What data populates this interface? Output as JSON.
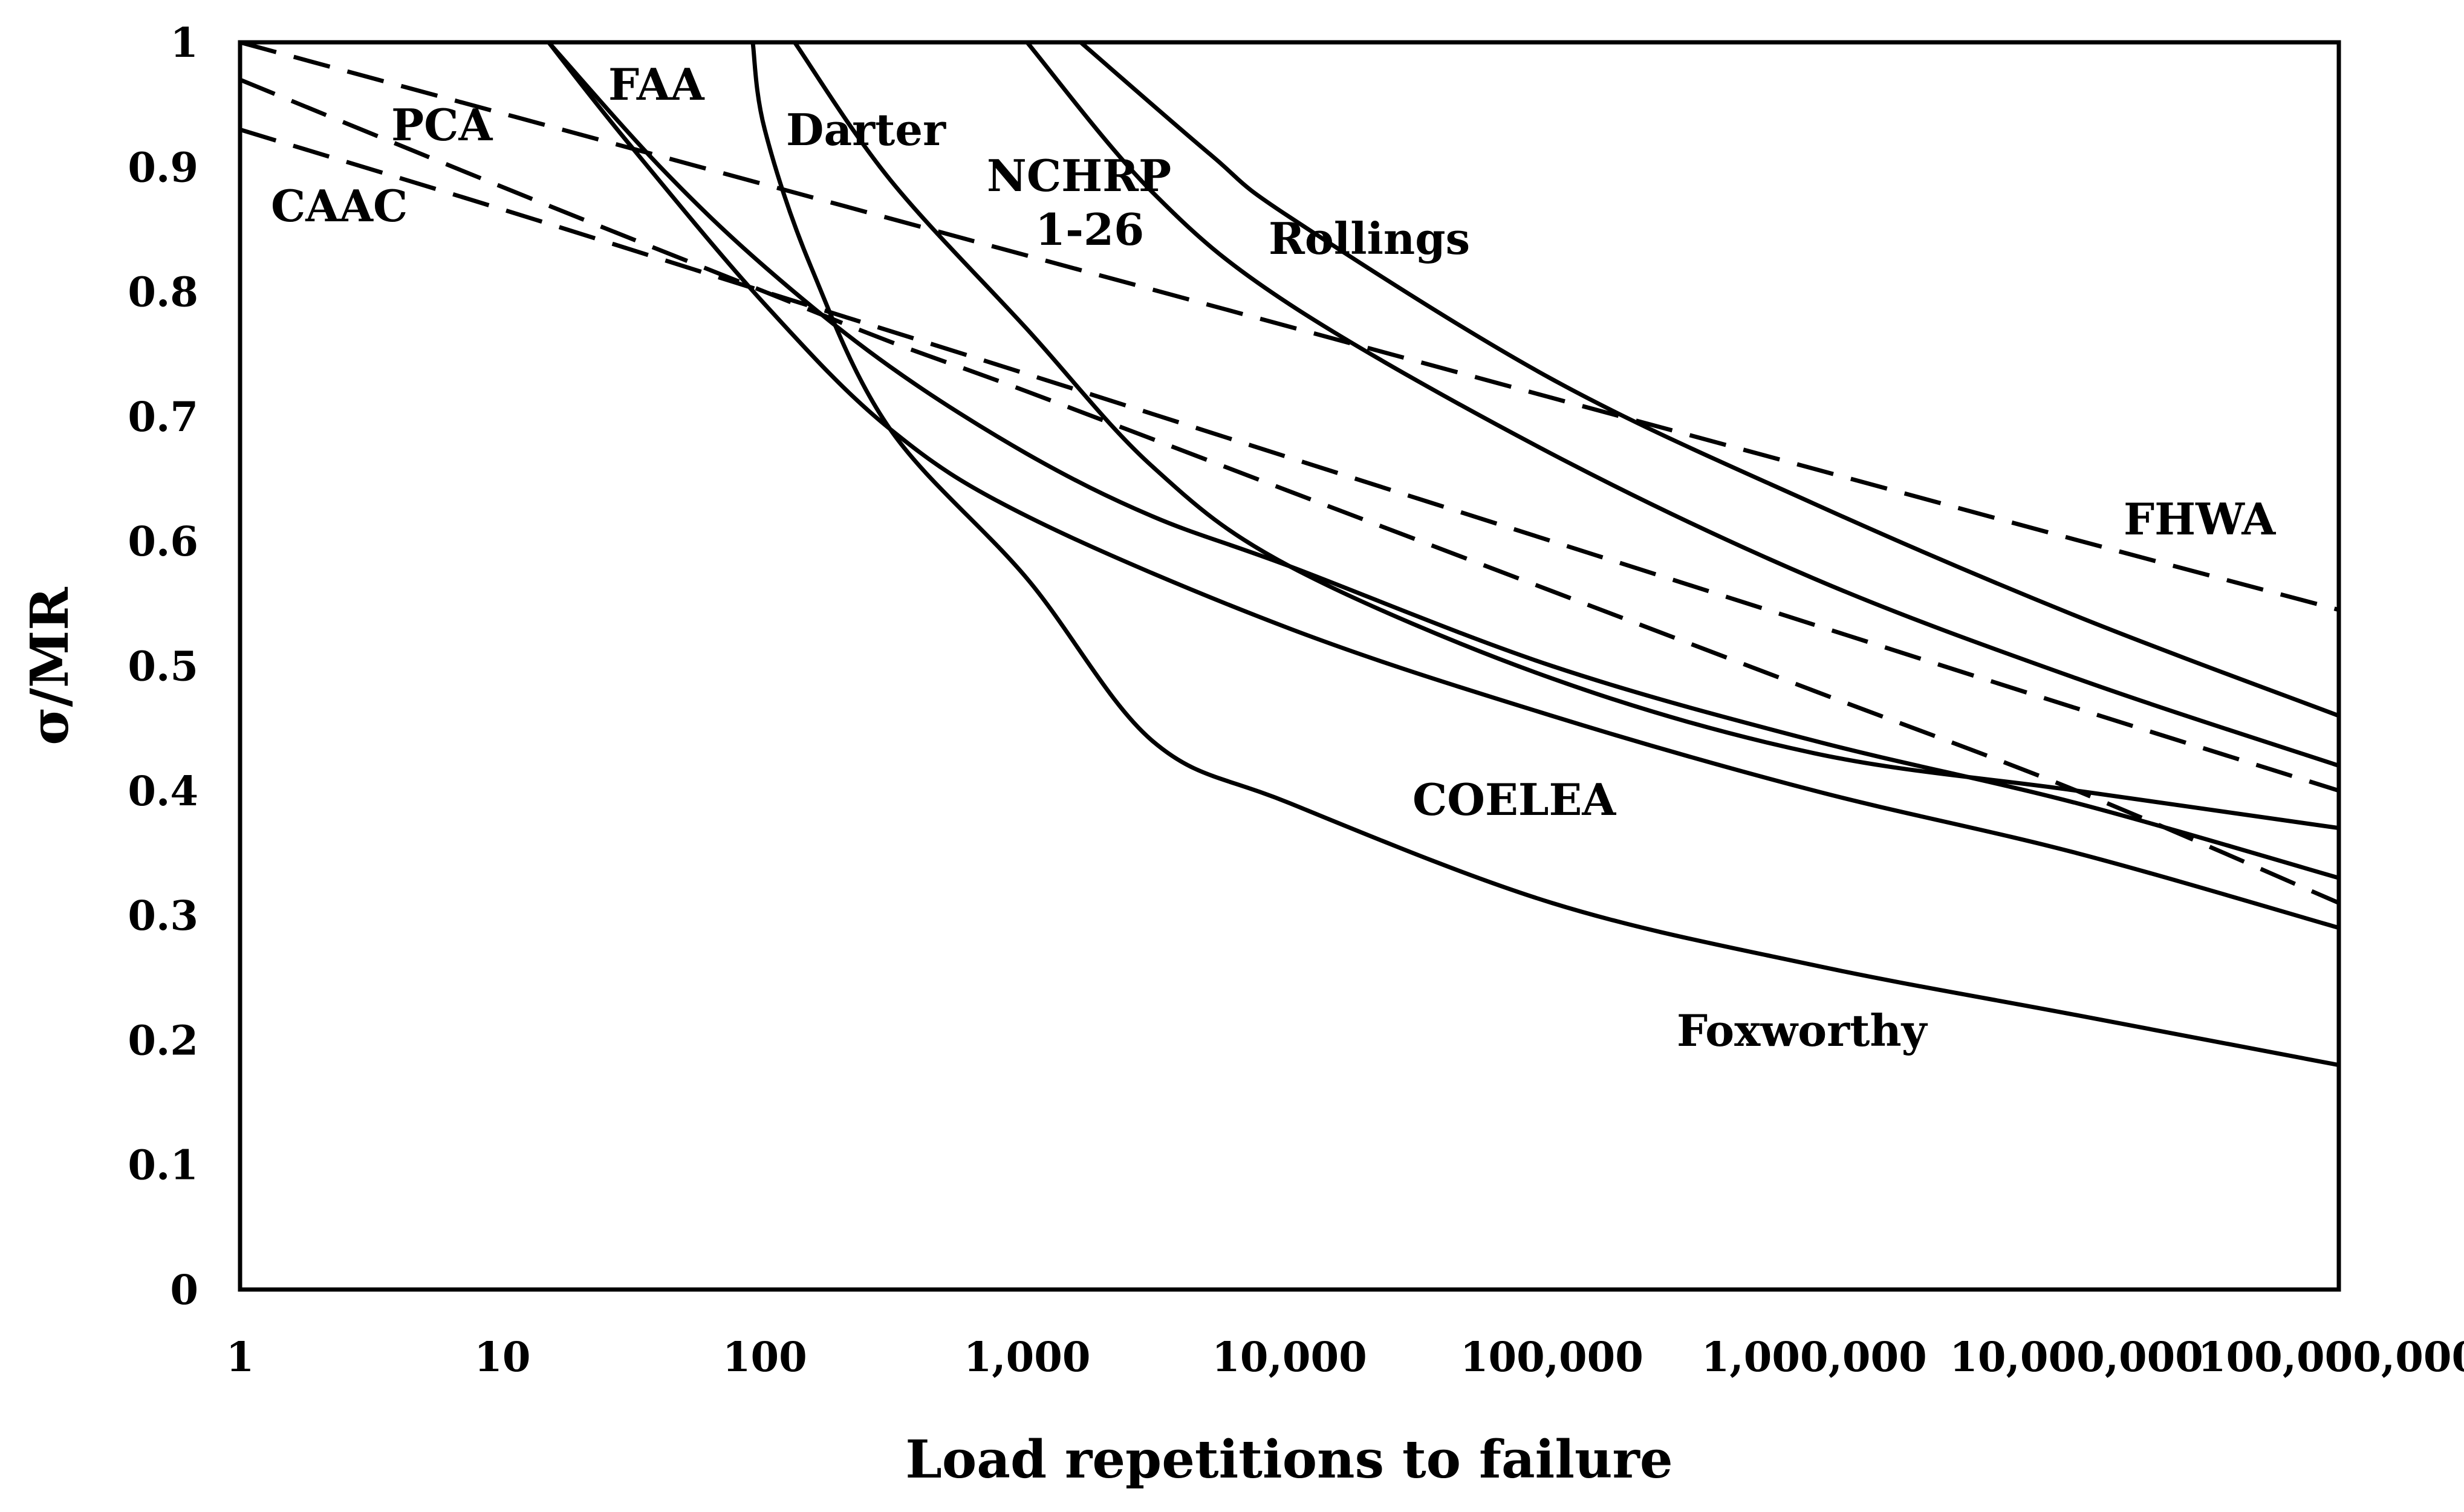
{
  "chart_data": {
    "type": "line",
    "title": "",
    "xlabel": "Load repetitions to failure",
    "ylabel": "σ/MR",
    "xscale": "log",
    "xlim": [
      1,
      100000000
    ],
    "ylim": [
      0,
      1
    ],
    "grid": false,
    "x_ticks": [
      1,
      10,
      100,
      1000,
      10000,
      100000,
      1000000,
      10000000,
      100000000
    ],
    "x_tick_labels": [
      "1",
      "10",
      "100",
      "1,000",
      "10,000",
      "100,000",
      "1,000,000",
      "10,000,000",
      "100,000,000"
    ],
    "y_ticks": [
      0,
      0.1,
      0.2,
      0.3,
      0.4,
      0.5,
      0.6,
      0.7,
      0.8,
      0.9,
      1
    ],
    "y_tick_labels": [
      "0",
      "0.1",
      "0.2",
      "0.3",
      "0.4",
      "0.5",
      "0.6",
      "0.7",
      "0.8",
      "0.9",
      "1"
    ],
    "series": [
      {
        "name": "CAAC",
        "style": "dashed",
        "points": [
          [
            1,
            0.93
          ],
          [
            10,
            0.866
          ],
          [
            100,
            0.8
          ],
          [
            1000,
            0.734
          ],
          [
            10000,
            0.667
          ],
          [
            100000,
            0.6
          ],
          [
            1000000,
            0.533
          ],
          [
            10000000,
            0.466
          ],
          [
            100000000,
            0.4
          ]
        ]
      },
      {
        "name": "PCA",
        "style": "dashed",
        "points": [
          [
            1,
            0.97
          ],
          [
            10,
            0.884
          ],
          [
            100,
            0.8
          ],
          [
            300,
            0.76
          ],
          [
            1000,
            0.72
          ],
          [
            10000,
            0.64
          ],
          [
            100000,
            0.56
          ],
          [
            1000000,
            0.48
          ],
          [
            10000000,
            0.4
          ],
          [
            100000000,
            0.31
          ]
        ]
      },
      {
        "name": "FHWA",
        "style": "dashed",
        "points": [
          [
            1,
            1.0
          ],
          [
            10,
            0.943
          ],
          [
            100,
            0.886
          ],
          [
            1000,
            0.829
          ],
          [
            10000,
            0.772
          ],
          [
            100000,
            0.715
          ],
          [
            1000000,
            0.658
          ],
          [
            10000000,
            0.601
          ],
          [
            100000000,
            0.545
          ]
        ]
      },
      {
        "name": "FAA",
        "style": "solid",
        "points": [
          [
            15,
            1.0
          ],
          [
            30,
            0.92
          ],
          [
            100,
            0.79
          ],
          [
            300,
            0.69
          ],
          [
            1000,
            0.62
          ],
          [
            10000,
            0.53
          ],
          [
            100000,
            0.46
          ],
          [
            1000000,
            0.4
          ],
          [
            10000000,
            0.35
          ],
          [
            100000000,
            0.29
          ]
        ]
      },
      {
        "name": "Darter",
        "style": "solid",
        "points": [
          [
            90,
            1.0
          ],
          [
            100,
            0.93
          ],
          [
            150,
            0.82
          ],
          [
            300,
            0.69
          ],
          [
            1000,
            0.57
          ],
          [
            3000,
            0.44
          ],
          [
            10000,
            0.39
          ],
          [
            100000,
            0.31
          ],
          [
            1000000,
            0.26
          ],
          [
            10000000,
            0.22
          ],
          [
            100000000,
            0.18
          ]
        ]
      },
      {
        "name": "COELEA",
        "style": "solid",
        "points": [
          [
            15,
            1.0
          ],
          [
            40,
            0.9
          ],
          [
            100,
            0.82
          ],
          [
            300,
            0.74
          ],
          [
            1000,
            0.67
          ],
          [
            3000,
            0.62
          ],
          [
            10000,
            0.58
          ],
          [
            100000,
            0.5
          ],
          [
            1000000,
            0.44
          ],
          [
            10000000,
            0.39
          ],
          [
            100000000,
            0.33
          ]
        ]
      },
      {
        "name": "Foxworthy",
        "style": "solid",
        "points": [
          [
            130,
            1.0
          ],
          [
            300,
            0.89
          ],
          [
            1000,
            0.77
          ],
          [
            3000,
            0.66
          ],
          [
            10000,
            0.58
          ],
          [
            100000,
            0.49
          ],
          [
            1000000,
            0.43
          ],
          [
            10000000,
            0.4
          ],
          [
            100000000,
            0.37
          ]
        ]
      },
      {
        "name": "NCHRP 1-26",
        "style": "solid",
        "points": [
          [
            1000,
            1.0
          ],
          [
            3000,
            0.88
          ],
          [
            10000,
            0.79
          ],
          [
            100000,
            0.67
          ],
          [
            1000000,
            0.57
          ],
          [
            10000000,
            0.49
          ],
          [
            100000000,
            0.42
          ]
        ]
      },
      {
        "name": "Rollings",
        "style": "solid",
        "points": [
          [
            1600,
            1.0
          ],
          [
            5000,
            0.91
          ],
          [
            10000,
            0.86
          ],
          [
            100000,
            0.73
          ],
          [
            1000000,
            0.63
          ],
          [
            10000000,
            0.54
          ],
          [
            100000000,
            0.46
          ]
        ]
      }
    ],
    "annotations": [
      {
        "id": "faa",
        "text": "FAA"
      },
      {
        "id": "pca",
        "text": "PCA"
      },
      {
        "id": "caac",
        "text": "CAAC"
      },
      {
        "id": "darter",
        "text": "Darter"
      },
      {
        "id": "nchrp_line1",
        "text": "NCHRP"
      },
      {
        "id": "nchrp_line2",
        "text": "1-26"
      },
      {
        "id": "rollings",
        "text": "Rollings"
      },
      {
        "id": "fhwa",
        "text": "FHWA"
      },
      {
        "id": "coelea",
        "text": "COELEA"
      },
      {
        "id": "foxworthy",
        "text": "Foxworthy"
      }
    ]
  }
}
